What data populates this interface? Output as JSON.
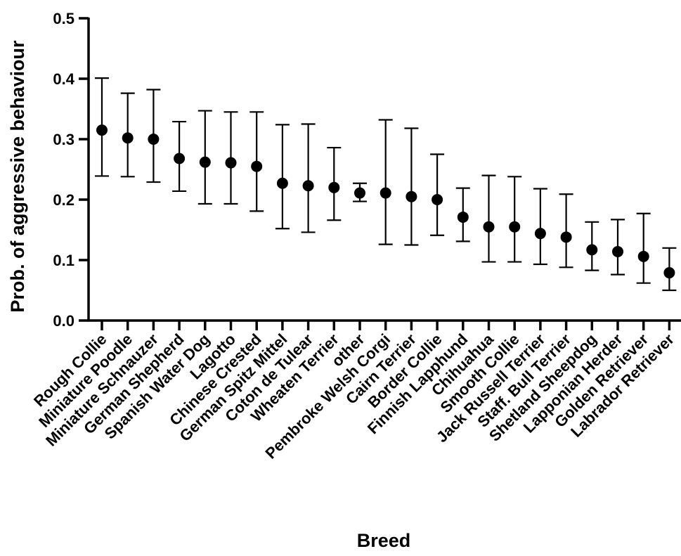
{
  "chart_data": {
    "type": "scatter",
    "title": "",
    "xlabel": "Breed",
    "ylabel": "Prob. of aggressive behaviour",
    "ylim": [
      0,
      0.5
    ],
    "yticks": [
      "0.0",
      "0.1",
      "0.2",
      "0.3",
      "0.4",
      "0.5"
    ],
    "grid": false,
    "categories": [
      "Rough Collie",
      "Miniature Poodle",
      "Miniature Schnauzer",
      "German Shepherd",
      "Spanish Water Dog",
      "Lagotto",
      "Chinese Crested",
      "German Spitz Mittel",
      "Coton de Tulear",
      "Wheaten Terrier",
      "other",
      "Pembroke Welsh Corgi",
      "Cairn Terrier",
      "Border Collie",
      "Finnish Lapphund",
      "Chihuahua",
      "Smooth Collie",
      "Jack Russell Terrier",
      "Staff. Bull Terrier",
      "Shetland Sheepdog",
      "Lapponian Herder",
      "Golden Retriever",
      "Labrador Retriever"
    ],
    "values": [
      0.315,
      0.302,
      0.3,
      0.268,
      0.262,
      0.261,
      0.255,
      0.227,
      0.223,
      0.22,
      0.211,
      0.211,
      0.205,
      0.2,
      0.171,
      0.155,
      0.155,
      0.144,
      0.138,
      0.117,
      0.114,
      0.106,
      0.079
    ],
    "lower": [
      0.239,
      0.238,
      0.229,
      0.214,
      0.193,
      0.193,
      0.181,
      0.152,
      0.146,
      0.166,
      0.197,
      0.126,
      0.125,
      0.141,
      0.131,
      0.097,
      0.097,
      0.093,
      0.088,
      0.083,
      0.076,
      0.062,
      0.05
    ],
    "upper": [
      0.401,
      0.376,
      0.382,
      0.329,
      0.347,
      0.345,
      0.345,
      0.324,
      0.325,
      0.286,
      0.227,
      0.332,
      0.318,
      0.275,
      0.219,
      0.24,
      0.238,
      0.218,
      0.209,
      0.163,
      0.167,
      0.177,
      0.12
    ]
  }
}
